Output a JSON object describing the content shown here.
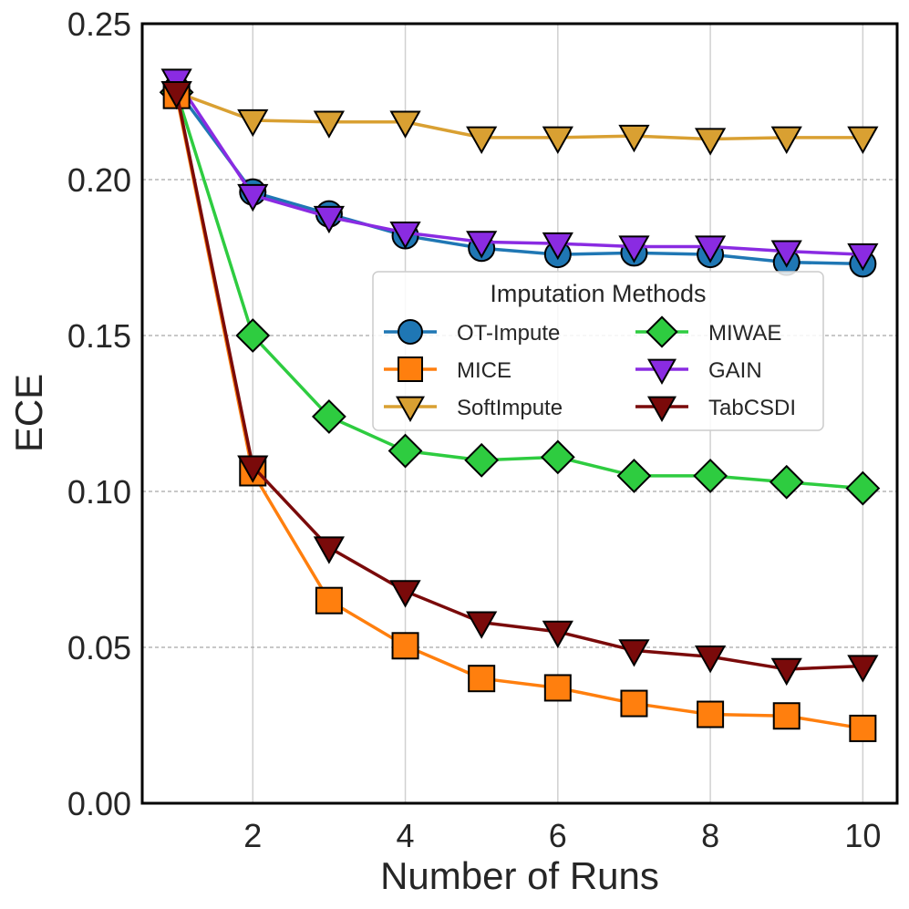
{
  "chart_data": {
    "type": "line",
    "title": "",
    "xlabel": "Number of Runs",
    "ylabel": "ECE",
    "xlim": [
      0.55,
      10.45
    ],
    "ylim": [
      0,
      0.25
    ],
    "xticks": [
      2,
      4,
      6,
      8,
      10
    ],
    "xtick_labels": [
      "2",
      "4",
      "6",
      "8",
      "10"
    ],
    "yticks": [
      0,
      0.05,
      0.1,
      0.15,
      0.2,
      0.25
    ],
    "ytick_labels": [
      "0.00",
      "0.05",
      "0.10",
      "0.15",
      "0.20",
      "0.25"
    ],
    "grid": "vertical solid, horizontal dashed",
    "legend": {
      "title": "Imputation Methods",
      "placement": "center-right",
      "columns": 2
    },
    "x": [
      1,
      2,
      3,
      4,
      5,
      6,
      7,
      8,
      9,
      10
    ],
    "series": [
      {
        "name": "OT-Impute",
        "color": "#1f77b4",
        "marker": "circle",
        "values": [
          0.229,
          0.196,
          0.189,
          0.182,
          0.178,
          0.176,
          0.1765,
          0.176,
          0.1735,
          0.173
        ]
      },
      {
        "name": "MICE",
        "color": "#ff7f0e",
        "marker": "square",
        "values": [
          0.227,
          0.106,
          0.065,
          0.0505,
          0.04,
          0.037,
          0.032,
          0.0285,
          0.028,
          0.024
        ]
      },
      {
        "name": "SoftImpute",
        "color": "#d9a032",
        "marker": "triangle-down",
        "values": [
          0.228,
          0.219,
          0.2185,
          0.2185,
          0.2135,
          0.2135,
          0.214,
          0.213,
          0.2135,
          0.2135
        ]
      },
      {
        "name": "MIWAE",
        "color": "#2ecc40",
        "marker": "diamond",
        "values": [
          0.228,
          0.15,
          0.124,
          0.113,
          0.11,
          0.111,
          0.105,
          0.105,
          0.103,
          0.101
        ]
      },
      {
        "name": "GAIN",
        "color": "#8a2be2",
        "marker": "triangle-down",
        "values": [
          0.232,
          0.195,
          0.188,
          0.183,
          0.18,
          0.1795,
          0.1785,
          0.1785,
          0.177,
          0.176
        ]
      },
      {
        "name": "TabCSDI",
        "color": "#7a0a0a",
        "marker": "triangle-down",
        "values": [
          0.228,
          0.108,
          0.082,
          0.068,
          0.058,
          0.055,
          0.049,
          0.047,
          0.043,
          0.044
        ]
      }
    ],
    "draw_order": [
      "OT-Impute",
      "SoftImpute",
      "MIWAE",
      "GAIN",
      "MICE",
      "TabCSDI"
    ]
  }
}
